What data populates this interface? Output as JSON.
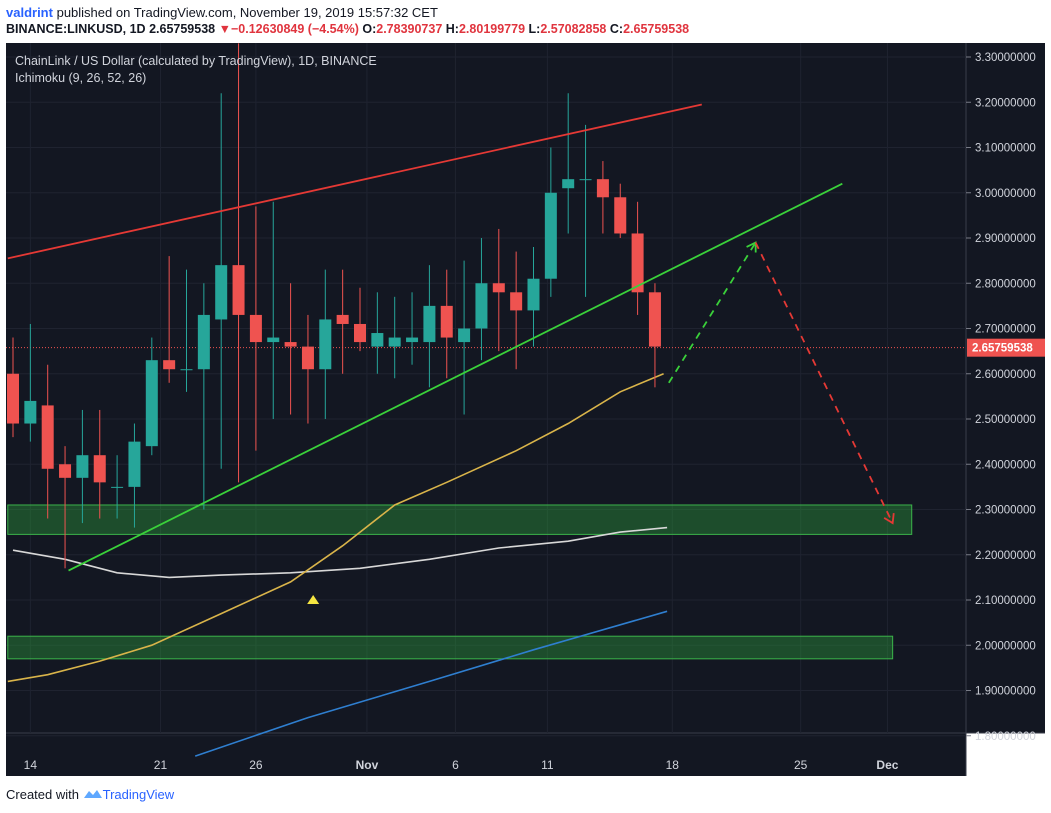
{
  "header": {
    "user": "valdrint",
    "published_text": "published on TradingView.com, November 19, 2019 15:57:32 CET",
    "ticker_line": "BINANCE:LINKUSD, 1D",
    "last": "2.65759538",
    "change": "−0.12630849 (−4.54%)",
    "o_label": "O:",
    "o_value": "2.78390737",
    "h_label": "H:",
    "h_value": "2.80199779",
    "l_label": "L:",
    "l_value": "2.57082858",
    "c_label": "C:",
    "c_value": "2.65759538"
  },
  "chart_data": {
    "type": "candlestick",
    "title": "ChainLink / US Dollar (calculated by TradingView), 1D, BINANCE",
    "indicator": "Ichimoku (9, 26, 52, 26)",
    "x_ticks": [
      "14",
      "21",
      "26",
      "Nov",
      "6",
      "11",
      "18",
      "25",
      "Dec"
    ],
    "y_ticks": [
      "3.30000000",
      "3.20000000",
      "3.10000000",
      "3.00000000",
      "2.90000000",
      "2.80000000",
      "2.70000000",
      "2.60000000",
      "2.50000000",
      "2.40000000",
      "2.30000000",
      "2.20000000",
      "2.10000000",
      "2.00000000",
      "1.90000000",
      "1.80000000"
    ],
    "ylim": [
      1.75,
      3.33
    ],
    "last_price_label": "2.65759538",
    "colors": {
      "up": "#26a69a",
      "down": "#ef5350",
      "bg": "#131722",
      "support": "#2e7d32"
    },
    "candles": [
      {
        "day": 0,
        "o": 2.6,
        "h": 2.68,
        "l": 2.46,
        "c": 2.49
      },
      {
        "day": 1,
        "o": 2.49,
        "h": 2.71,
        "l": 2.45,
        "c": 2.54
      },
      {
        "day": 2,
        "o": 2.53,
        "h": 2.62,
        "l": 2.28,
        "c": 2.39
      },
      {
        "day": 3,
        "o": 2.4,
        "h": 2.44,
        "l": 2.17,
        "c": 2.37
      },
      {
        "day": 4,
        "o": 2.37,
        "h": 2.52,
        "l": 2.27,
        "c": 2.42
      },
      {
        "day": 5,
        "o": 2.42,
        "h": 2.52,
        "l": 2.28,
        "c": 2.36
      },
      {
        "day": 6,
        "o": 2.35,
        "h": 2.42,
        "l": 2.28,
        "c": 2.35
      },
      {
        "day": 7,
        "o": 2.35,
        "h": 2.49,
        "l": 2.26,
        "c": 2.45
      },
      {
        "day": 8,
        "o": 2.44,
        "h": 2.68,
        "l": 2.42,
        "c": 2.63
      },
      {
        "day": 9,
        "o": 2.63,
        "h": 2.86,
        "l": 2.58,
        "c": 2.61
      },
      {
        "day": 10,
        "o": 2.61,
        "h": 2.83,
        "l": 2.56,
        "c": 2.61
      },
      {
        "day": 11,
        "o": 2.61,
        "h": 2.8,
        "l": 2.3,
        "c": 2.73
      },
      {
        "day": 12,
        "o": 2.72,
        "h": 3.22,
        "l": 2.39,
        "c": 2.84
      },
      {
        "day": 13,
        "o": 2.84,
        "h": 3.33,
        "l": 2.36,
        "c": 2.73
      },
      {
        "day": 14,
        "o": 2.73,
        "h": 2.97,
        "l": 2.43,
        "c": 2.67
      },
      {
        "day": 15,
        "o": 2.67,
        "h": 2.98,
        "l": 2.5,
        "c": 2.68
      },
      {
        "day": 16,
        "o": 2.67,
        "h": 2.8,
        "l": 2.51,
        "c": 2.66
      },
      {
        "day": 17,
        "o": 2.66,
        "h": 2.73,
        "l": 2.49,
        "c": 2.61
      },
      {
        "day": 18,
        "o": 2.61,
        "h": 2.83,
        "l": 2.5,
        "c": 2.72
      },
      {
        "day": 19,
        "o": 2.73,
        "h": 2.83,
        "l": 2.6,
        "c": 2.71
      },
      {
        "day": 20,
        "o": 2.71,
        "h": 2.79,
        "l": 2.65,
        "c": 2.67
      },
      {
        "day": 21,
        "o": 2.66,
        "h": 2.78,
        "l": 2.6,
        "c": 2.69
      },
      {
        "day": 22,
        "o": 2.66,
        "h": 2.77,
        "l": 2.59,
        "c": 2.68
      },
      {
        "day": 23,
        "o": 2.67,
        "h": 2.78,
        "l": 2.62,
        "c": 2.68
      },
      {
        "day": 24,
        "o": 2.67,
        "h": 2.84,
        "l": 2.57,
        "c": 2.75
      },
      {
        "day": 25,
        "o": 2.75,
        "h": 2.83,
        "l": 2.59,
        "c": 2.68
      },
      {
        "day": 26,
        "o": 2.67,
        "h": 2.85,
        "l": 2.51,
        "c": 2.7
      },
      {
        "day": 27,
        "o": 2.7,
        "h": 2.9,
        "l": 2.63,
        "c": 2.8
      },
      {
        "day": 28,
        "o": 2.8,
        "h": 2.92,
        "l": 2.65,
        "c": 2.78
      },
      {
        "day": 29,
        "o": 2.78,
        "h": 2.87,
        "l": 2.61,
        "c": 2.74
      },
      {
        "day": 30,
        "o": 2.74,
        "h": 2.88,
        "l": 2.66,
        "c": 2.81
      },
      {
        "day": 31,
        "o": 2.81,
        "h": 3.1,
        "l": 2.77,
        "c": 3.0
      },
      {
        "day": 32,
        "o": 3.01,
        "h": 3.22,
        "l": 2.91,
        "c": 3.03
      },
      {
        "day": 33,
        "o": 3.03,
        "h": 3.15,
        "l": 2.77,
        "c": 3.03
      },
      {
        "day": 34,
        "o": 3.03,
        "h": 3.07,
        "l": 2.91,
        "c": 2.99
      },
      {
        "day": 35,
        "o": 2.99,
        "h": 3.02,
        "l": 2.9,
        "c": 2.91
      },
      {
        "day": 36,
        "o": 2.91,
        "h": 2.98,
        "l": 2.73,
        "c": 2.78
      },
      {
        "day": 37,
        "o": 2.78,
        "h": 2.8,
        "l": 2.57,
        "c": 2.66
      }
    ],
    "tenkan_line": [
      {
        "day": -0.3,
        "y": 1.92
      },
      {
        "day": 2,
        "y": 1.935
      },
      {
        "day": 5,
        "y": 1.965
      },
      {
        "day": 8,
        "y": 2.0
      },
      {
        "day": 12,
        "y": 2.07
      },
      {
        "day": 16,
        "y": 2.14
      },
      {
        "day": 19,
        "y": 2.22
      },
      {
        "day": 22,
        "y": 2.31
      },
      {
        "day": 25,
        "y": 2.36
      },
      {
        "day": 29,
        "y": 2.43
      },
      {
        "day": 32,
        "y": 2.49
      },
      {
        "day": 35,
        "y": 2.56
      },
      {
        "day": 37.5,
        "y": 2.6
      }
    ],
    "kijun_line": [
      {
        "day": 0,
        "y": 2.21
      },
      {
        "day": 3,
        "y": 2.19
      },
      {
        "day": 6,
        "y": 2.16
      },
      {
        "day": 9,
        "y": 2.15
      },
      {
        "day": 12,
        "y": 2.155
      },
      {
        "day": 16,
        "y": 2.16
      },
      {
        "day": 20,
        "y": 2.17
      },
      {
        "day": 24,
        "y": 2.19
      },
      {
        "day": 28,
        "y": 2.215
      },
      {
        "day": 32,
        "y": 2.23
      },
      {
        "day": 35,
        "y": 2.25
      },
      {
        "day": 37.7,
        "y": 2.26
      }
    ],
    "cloud_line": [
      {
        "day": 10.5,
        "y": 1.755
      },
      {
        "day": 17,
        "y": 1.84
      },
      {
        "day": 24,
        "y": 1.92
      },
      {
        "day": 30,
        "y": 1.99
      },
      {
        "day": 37.7,
        "y": 2.075
      }
    ],
    "trendlines": [
      {
        "name": "upper-resistance",
        "color": "#e53935",
        "from": {
          "day": -0.3,
          "y": 2.855
        },
        "to": {
          "day": 39.7,
          "y": 3.195
        }
      },
      {
        "name": "ascending-support",
        "color": "#3ad13a",
        "from": {
          "day": 3.2,
          "y": 2.165
        },
        "to": {
          "day": 47.8,
          "y": 3.02
        }
      }
    ],
    "projection": [
      {
        "name": "projected-rise",
        "color": "#3ad13a",
        "from": {
          "day": 37.8,
          "y": 2.58
        },
        "to": {
          "day": 42.8,
          "y": 2.89
        }
      },
      {
        "name": "projected-drop",
        "color": "#e53935",
        "from": {
          "day": 42.8,
          "y": 2.89
        },
        "to": {
          "day": 50.7,
          "y": 2.27
        }
      }
    ],
    "support_zones": [
      {
        "name": "support-zone-upper",
        "from_day": -0.3,
        "to_day": 51.8,
        "y_low": 2.245,
        "y_high": 2.31
      },
      {
        "name": "support-zone-lower",
        "from_day": -0.3,
        "to_day": 50.7,
        "y_low": 1.97,
        "y_high": 2.02
      }
    ],
    "marker": {
      "day": 17.3,
      "y": 2.1
    },
    "last_price": 2.6576
  },
  "footer": {
    "created": "Created with",
    "brand": "TradingView"
  }
}
